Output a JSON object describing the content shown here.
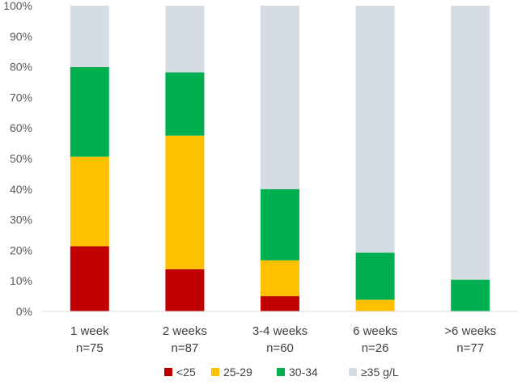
{
  "chart_data": {
    "type": "bar",
    "stacked": true,
    "title": "",
    "xlabel": "",
    "ylabel": "",
    "ylim": [
      0,
      100
    ],
    "y_ticks": [
      "0%",
      "10%",
      "20%",
      "30%",
      "40%",
      "50%",
      "60%",
      "70%",
      "80%",
      "90%",
      "100%"
    ],
    "grid": false,
    "legend_position": "bottom",
    "categories": [
      {
        "label": "1 week",
        "n": "n=75"
      },
      {
        "label": "2 weeks",
        "n": "n=87"
      },
      {
        "label": "3-4 weeks",
        "n": "n=60"
      },
      {
        "label": "6 weeks",
        "n": "n=26"
      },
      {
        "label": ">6 weeks",
        "n": "n=77"
      }
    ],
    "series": [
      {
        "name": "<25",
        "color": "#c00000",
        "values": [
          21.3,
          13.8,
          5.0,
          0.0,
          0.0
        ]
      },
      {
        "name": "25-29",
        "color": "#ffc000",
        "values": [
          29.3,
          43.7,
          11.7,
          3.8,
          0.0
        ]
      },
      {
        "name": "30-34",
        "color": "#00b050",
        "values": [
          29.3,
          20.7,
          23.3,
          15.4,
          10.4
        ]
      },
      {
        "name": "≥35 g/L",
        "color": "#d6dce4",
        "values": [
          20.1,
          21.8,
          60.0,
          80.8,
          89.6
        ]
      }
    ]
  }
}
